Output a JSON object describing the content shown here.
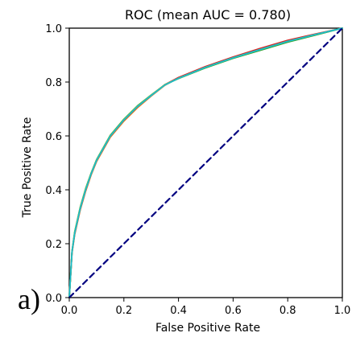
{
  "panel_label": "a)",
  "chart_data": {
    "type": "line",
    "title": "ROC (mean AUC = 0.780)",
    "xlabel": "False Positive Rate",
    "ylabel": "True Positive Rate",
    "xlim": [
      0.0,
      1.0
    ],
    "ylim": [
      0.0,
      1.0
    ],
    "xticks": [
      0.0,
      0.2,
      0.4,
      0.6,
      0.8,
      1.0
    ],
    "yticks": [
      0.0,
      0.2,
      0.4,
      0.6,
      0.8,
      1.0
    ],
    "xtick_labels": [
      "0.0",
      "0.2",
      "0.4",
      "0.6",
      "0.8",
      "1.0"
    ],
    "ytick_labels": [
      "0.0",
      "0.2",
      "0.4",
      "0.6",
      "0.8",
      "1.0"
    ],
    "grid": false,
    "series": [
      {
        "color": "#1f77b4",
        "style": "solid",
        "x": [
          0.0,
          0.01,
          0.02,
          0.04,
          0.06,
          0.08,
          0.1,
          0.15,
          0.2,
          0.25,
          0.3,
          0.35,
          0.4,
          0.5,
          0.6,
          0.7,
          0.8,
          0.9,
          1.0
        ],
        "y": [
          0.0,
          0.17,
          0.24,
          0.33,
          0.4,
          0.46,
          0.51,
          0.6,
          0.66,
          0.71,
          0.75,
          0.79,
          0.815,
          0.855,
          0.89,
          0.92,
          0.95,
          0.975,
          1.0
        ]
      },
      {
        "color": "#ff7f0e",
        "style": "solid",
        "x": [
          0.0,
          0.01,
          0.02,
          0.04,
          0.06,
          0.08,
          0.1,
          0.15,
          0.2,
          0.25,
          0.3,
          0.35,
          0.4,
          0.5,
          0.6,
          0.7,
          0.8,
          0.9,
          1.0
        ],
        "y": [
          0.0,
          0.165,
          0.235,
          0.325,
          0.395,
          0.455,
          0.505,
          0.595,
          0.655,
          0.705,
          0.748,
          0.788,
          0.815,
          0.857,
          0.892,
          0.923,
          0.953,
          0.977,
          1.0
        ]
      },
      {
        "color": "#2ca02c",
        "style": "solid",
        "x": [
          0.0,
          0.01,
          0.02,
          0.04,
          0.06,
          0.08,
          0.1,
          0.15,
          0.2,
          0.25,
          0.3,
          0.35,
          0.4,
          0.5,
          0.6,
          0.7,
          0.8,
          0.9,
          1.0
        ],
        "y": [
          0.0,
          0.172,
          0.245,
          0.335,
          0.405,
          0.462,
          0.512,
          0.602,
          0.662,
          0.712,
          0.752,
          0.79,
          0.813,
          0.853,
          0.888,
          0.918,
          0.948,
          0.974,
          1.0
        ]
      },
      {
        "color": "#d62728",
        "style": "solid",
        "x": [
          0.0,
          0.01,
          0.02,
          0.04,
          0.06,
          0.08,
          0.1,
          0.15,
          0.2,
          0.25,
          0.3,
          0.35,
          0.4,
          0.5,
          0.6,
          0.7,
          0.8,
          0.9,
          1.0
        ],
        "y": [
          0.0,
          0.168,
          0.238,
          0.328,
          0.398,
          0.458,
          0.508,
          0.598,
          0.658,
          0.708,
          0.75,
          0.79,
          0.817,
          0.858,
          0.893,
          0.925,
          0.955,
          0.978,
          1.0
        ]
      },
      {
        "color": "#bcbd22",
        "style": "solid",
        "x": [
          0.0,
          0.01,
          0.02,
          0.04,
          0.06,
          0.08,
          0.1,
          0.15,
          0.2,
          0.25,
          0.3,
          0.35,
          0.4,
          0.5,
          0.6,
          0.7,
          0.8,
          0.9,
          1.0
        ],
        "y": [
          0.0,
          0.17,
          0.242,
          0.332,
          0.402,
          0.46,
          0.51,
          0.6,
          0.66,
          0.71,
          0.751,
          0.79,
          0.814,
          0.855,
          0.89,
          0.921,
          0.951,
          0.976,
          1.0
        ]
      },
      {
        "color": "#17becf",
        "style": "solid",
        "x": [
          0.0,
          0.01,
          0.02,
          0.04,
          0.06,
          0.08,
          0.1,
          0.15,
          0.2,
          0.25,
          0.3,
          0.35,
          0.4,
          0.5,
          0.6,
          0.7,
          0.8,
          0.9,
          1.0
        ],
        "y": [
          0.0,
          0.169,
          0.24,
          0.33,
          0.4,
          0.459,
          0.509,
          0.599,
          0.659,
          0.709,
          0.75,
          0.789,
          0.814,
          0.855,
          0.89,
          0.921,
          0.951,
          0.976,
          1.0
        ]
      },
      {
        "color": "#000080",
        "style": "dashed",
        "x": [
          0.0,
          1.0
        ],
        "y": [
          0.0,
          1.0
        ]
      }
    ]
  }
}
